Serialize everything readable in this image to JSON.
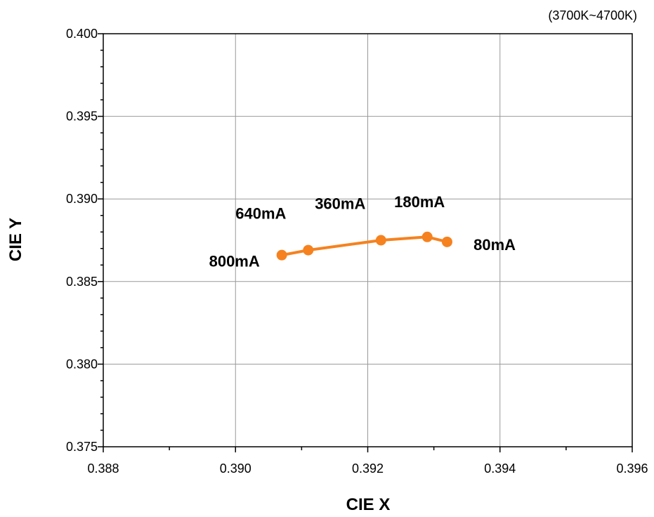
{
  "chart_data": {
    "type": "line",
    "subtitle": "(3700K~4700K)",
    "xlabel": "CIE X",
    "ylabel": "CIE Y",
    "xlim": [
      0.388,
      0.396
    ],
    "ylim": [
      0.375,
      0.4
    ],
    "x_ticks": [
      "0.388",
      "0.390",
      "0.392",
      "0.394",
      "0.396"
    ],
    "y_ticks": [
      "0.375",
      "0.380",
      "0.385",
      "0.390",
      "0.395",
      "0.400"
    ],
    "grid": true,
    "series": [
      {
        "color": "#F5821F",
        "points": [
          {
            "x": 0.3907,
            "y": 0.3866
          },
          {
            "x": 0.3911,
            "y": 0.3869
          },
          {
            "x": 0.3922,
            "y": 0.3875
          },
          {
            "x": 0.3929,
            "y": 0.3877
          },
          {
            "x": 0.3932,
            "y": 0.3874
          }
        ]
      }
    ],
    "annotations": [
      {
        "text": "800mA",
        "x": 0.3896,
        "y": 0.3859
      },
      {
        "text": "640mA",
        "x": 0.39,
        "y": 0.3888
      },
      {
        "text": "360mA",
        "x": 0.3912,
        "y": 0.3894
      },
      {
        "text": "180mA",
        "x": 0.3924,
        "y": 0.3895
      },
      {
        "text": "80mA",
        "x": 0.3936,
        "y": 0.3869
      }
    ]
  }
}
